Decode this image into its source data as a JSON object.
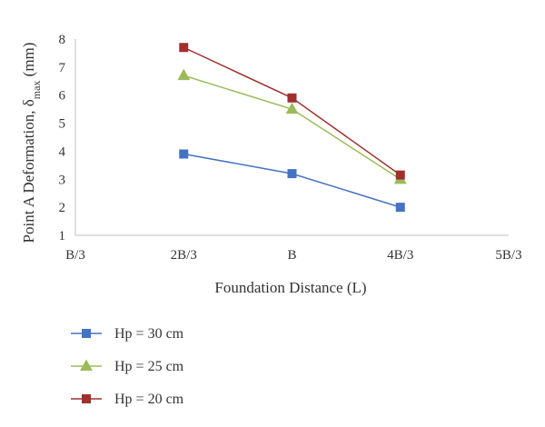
{
  "chart_data": {
    "type": "line",
    "categories": [
      "B/3",
      "2B/3",
      "B",
      "4B/3",
      "5B/3"
    ],
    "xlabel": "Foundation Distance (L)",
    "ylabel": {
      "prefix": "Point A Deformation, δ",
      "subscript": "max",
      "suffix": " (mm)"
    },
    "ylim": [
      1,
      8
    ],
    "yticks": [
      1,
      2,
      3,
      4,
      5,
      6,
      7,
      8
    ],
    "grid": false,
    "legend_position": "bottom-left",
    "series": [
      {
        "name": "Hp = 30 cm",
        "marker": "square",
        "color": "#4472C4",
        "values": [
          null,
          3.9,
          3.2,
          2.0,
          null
        ]
      },
      {
        "name": "Hp = 25 cm",
        "marker": "triangle",
        "color": "#9BBB59",
        "values": [
          null,
          6.7,
          5.5,
          3.0,
          null
        ]
      },
      {
        "name": "Hp = 20 cm",
        "marker": "square",
        "color": "#A0302D",
        "values": [
          null,
          7.7,
          5.9,
          3.15,
          null
        ]
      }
    ]
  }
}
